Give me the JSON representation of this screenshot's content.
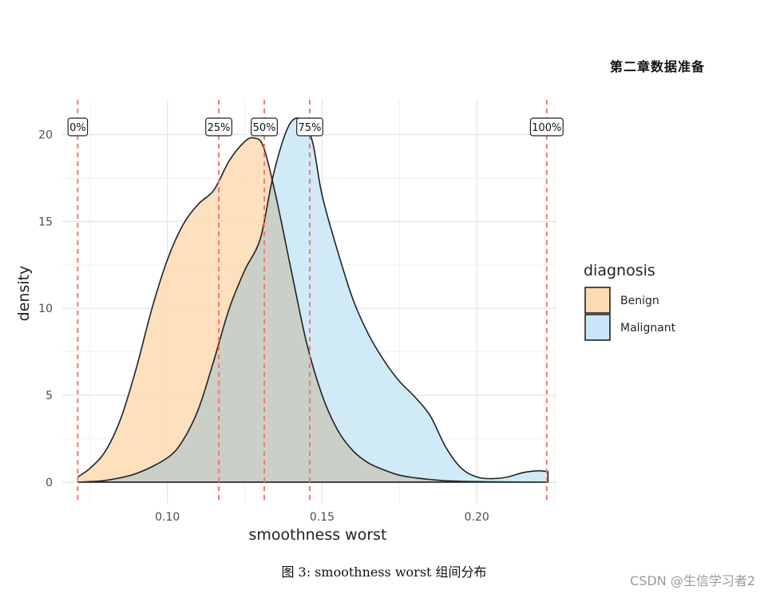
{
  "page": {
    "header": "第二章数据准备",
    "caption": "图 3: smoothness worst 组间分布",
    "watermark": "CSDN @生信学习者2"
  },
  "chart_data": {
    "type": "area",
    "title": "",
    "xlabel": "smoothness worst",
    "ylabel": "density",
    "xlim": [
      0.066,
      0.226
    ],
    "ylim": [
      -1.2,
      22
    ],
    "x_ticks": [
      0.1,
      0.15,
      0.2
    ],
    "x_tick_labels": [
      "0.10",
      "0.15",
      "0.20"
    ],
    "y_ticks": [
      0,
      5,
      10,
      15,
      20
    ],
    "y_tick_labels": [
      "0",
      "5",
      "10",
      "15",
      "20"
    ],
    "grid": true,
    "legend": {
      "title": "diagnosis",
      "position": "right",
      "entries": [
        {
          "name": "Benign",
          "color": "#FDDBB3"
        },
        {
          "name": "Malignant",
          "color": "#C8E6F7"
        }
      ]
    },
    "series": [
      {
        "name": "Benign",
        "color": "#FDDBB3",
        "x": [
          0.071,
          0.075,
          0.08,
          0.085,
          0.09,
          0.095,
          0.1,
          0.105,
          0.11,
          0.115,
          0.12,
          0.125,
          0.128,
          0.131,
          0.135,
          0.14,
          0.145,
          0.15,
          0.155,
          0.16,
          0.165,
          0.17,
          0.175,
          0.18,
          0.185,
          0.19,
          0.2,
          0.21,
          0.223
        ],
        "y": [
          0.3,
          0.8,
          1.8,
          3.7,
          6.6,
          10.0,
          12.8,
          14.8,
          16.0,
          16.8,
          18.5,
          19.6,
          19.8,
          19.3,
          16.5,
          12.2,
          8.0,
          5.0,
          3.0,
          1.8,
          1.1,
          0.7,
          0.4,
          0.25,
          0.15,
          0.08,
          0.03,
          0.01,
          0.0
        ]
      },
      {
        "name": "Malignant",
        "color": "#C8E6F7",
        "x": [
          0.071,
          0.08,
          0.09,
          0.1,
          0.105,
          0.11,
          0.115,
          0.12,
          0.125,
          0.13,
          0.134,
          0.138,
          0.141,
          0.144,
          0.147,
          0.15,
          0.155,
          0.16,
          0.165,
          0.17,
          0.175,
          0.18,
          0.185,
          0.19,
          0.195,
          0.2,
          0.205,
          0.21,
          0.215,
          0.22,
          0.223
        ],
        "y": [
          0.0,
          0.1,
          0.5,
          1.4,
          2.4,
          4.2,
          7.0,
          10.0,
          12.2,
          14.0,
          17.5,
          20.0,
          20.9,
          20.7,
          19.5,
          16.5,
          13.3,
          10.5,
          8.5,
          7.0,
          5.8,
          4.9,
          3.8,
          2.0,
          0.8,
          0.3,
          0.2,
          0.3,
          0.55,
          0.65,
          0.6
        ]
      }
    ],
    "quantiles": [
      {
        "label": "0%",
        "x": 0.071
      },
      {
        "label": "25%",
        "x": 0.1166
      },
      {
        "label": "50%",
        "x": 0.1313
      },
      {
        "label": "75%",
        "x": 0.146
      },
      {
        "label": "100%",
        "x": 0.2226
      }
    ],
    "quantile_line_color": "#F8766D"
  }
}
